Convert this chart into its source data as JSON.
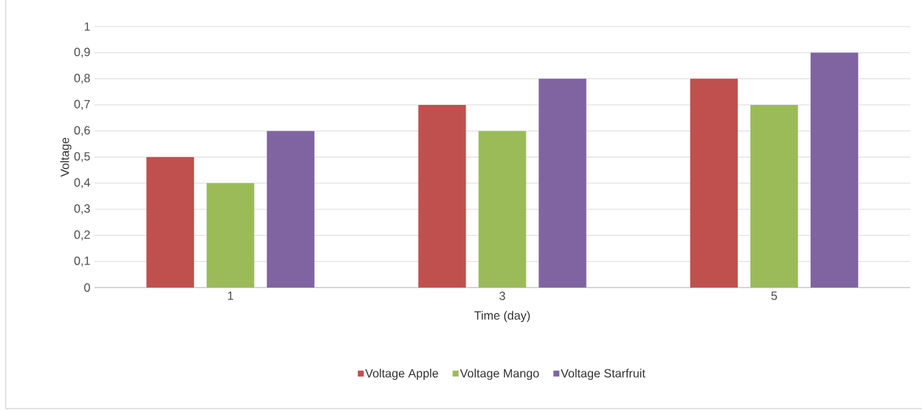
{
  "chart_data": {
    "type": "bar",
    "xlabel": "Time (day)",
    "ylabel": "Voltage",
    "categories": [
      "1",
      "3",
      "5"
    ],
    "series": [
      {
        "name": "Voltage Apple",
        "color": "#c0504d",
        "values": [
          0.5,
          0.7,
          0.8
        ]
      },
      {
        "name": "Voltage Mango",
        "color": "#9bbb59",
        "values": [
          0.4,
          0.6,
          0.7
        ]
      },
      {
        "name": "Voltage Starfruit",
        "color": "#8064a2",
        "values": [
          0.6,
          0.8,
          0.9
        ]
      }
    ],
    "ylim": [
      0,
      1
    ],
    "yticks": [
      {
        "value": 0,
        "label": "0"
      },
      {
        "value": 0.1,
        "label": "0,1"
      },
      {
        "value": 0.2,
        "label": "0,2"
      },
      {
        "value": 0.3,
        "label": "0,3"
      },
      {
        "value": 0.4,
        "label": "0,4"
      },
      {
        "value": 0.5,
        "label": "0,5"
      },
      {
        "value": 0.6,
        "label": "0,6"
      },
      {
        "value": 0.7,
        "label": "0,7"
      },
      {
        "value": 0.8,
        "label": "0,8"
      },
      {
        "value": 0.9,
        "label": "0,9"
      },
      {
        "value": 1,
        "label": "1"
      }
    ],
    "grid": "y",
    "legend": "bottom"
  }
}
